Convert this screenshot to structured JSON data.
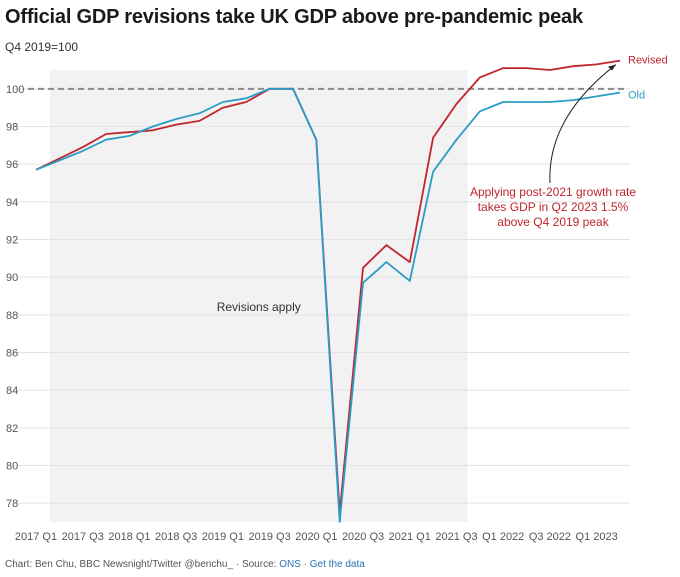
{
  "header": {
    "title": "Official GDP revisions take UK GDP above pre-pandemic peak",
    "subtitle": "Q4 2019=100"
  },
  "footer": {
    "credit": "Chart: Ben Chu, BBC Newsnight/Twitter @benchu_",
    "source_prefix": "Source:",
    "source_link": "ONS",
    "get_data": "Get the data"
  },
  "chart_data": {
    "type": "line",
    "title": "Official GDP revisions take UK GDP above pre-pandemic peak",
    "subtitle": "Q4 2019=100",
    "xlabel": "",
    "ylabel": "",
    "ylim": [
      77,
      101
    ],
    "yticks": [
      78,
      80,
      82,
      84,
      86,
      88,
      90,
      92,
      94,
      96,
      98,
      100
    ],
    "grid": true,
    "categories": [
      "2017 Q1",
      "2017 Q2",
      "2017 Q3",
      "2017 Q4",
      "2018 Q1",
      "2018 Q2",
      "2018 Q3",
      "2018 Q4",
      "2019 Q1",
      "2019 Q2",
      "2019 Q3",
      "2019 Q4",
      "2020 Q1",
      "2020 Q2",
      "2020 Q3",
      "2020 Q4",
      "2021 Q1",
      "2021 Q2",
      "2021 Q3",
      "2021 Q4",
      "2022 Q1",
      "2022 Q2",
      "2022 Q3",
      "2022 Q4",
      "2023 Q1",
      "2023 Q2"
    ],
    "tick_labels": [
      "2017 Q1",
      "2017 Q3",
      "2018 Q1",
      "2018 Q3",
      "2019 Q1",
      "2019 Q3",
      "2020 Q1",
      "2020 Q3",
      "2021 Q1",
      "2021 Q3",
      "Q1 2022",
      "Q3 2022",
      "Q1 2023"
    ],
    "series": [
      {
        "name": "Revised",
        "color": "#c0262d",
        "values": [
          95.7,
          96.3,
          96.9,
          97.6,
          97.7,
          97.8,
          98.1,
          98.3,
          99.0,
          99.3,
          100.0,
          100.0,
          97.3,
          77.5,
          90.5,
          91.7,
          90.8,
          97.4,
          99.2,
          100.6,
          101.1,
          101.1,
          101.0,
          101.2,
          101.3,
          101.5
        ]
      },
      {
        "name": "Old",
        "color": "#2b9cc6",
        "values": [
          95.7,
          96.2,
          96.7,
          97.3,
          97.5,
          98.0,
          98.4,
          98.7,
          99.3,
          99.5,
          100.0,
          100.0,
          97.3,
          77.0,
          89.7,
          90.8,
          89.8,
          95.6,
          97.3,
          98.8,
          99.3,
          99.3,
          99.3,
          99.4,
          99.6,
          99.8
        ]
      }
    ],
    "reference_line": {
      "value": 100,
      "style": "dashed",
      "color": "#8a8a8a"
    },
    "shaded_region": {
      "from": "2017 Q1",
      "to": "2021 Q3",
      "label": "Revisions apply",
      "color": "#f2f2f2"
    },
    "annotation": {
      "lines": [
        "Applying post-2021 growth rate",
        "takes GDP in Q2 2023 1.5%",
        "above Q4 2019 peak"
      ],
      "color": "#c0262d",
      "points_to": "2023 Q2"
    }
  }
}
